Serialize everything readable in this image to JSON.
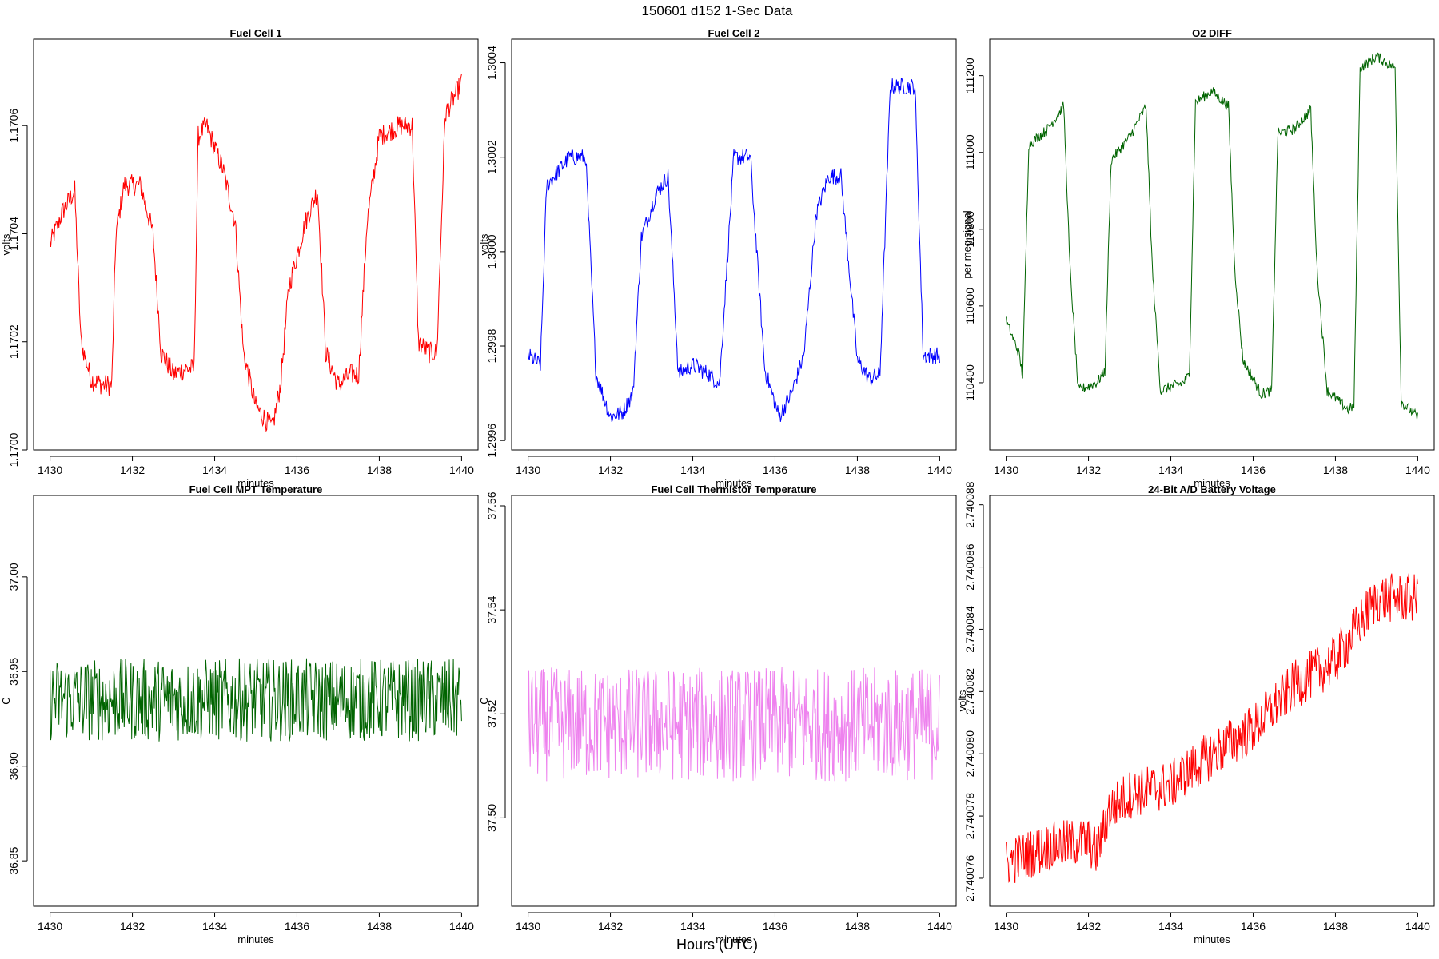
{
  "figure": {
    "title": "150601    d152    1-Sec Data",
    "footer_label": "Hours (UTC)"
  },
  "chart_data": [
    {
      "type": "line",
      "title": "Fuel Cell 1",
      "xlabel": "minutes",
      "ylabel": "volts",
      "color": "#ff0000",
      "xlim": [
        1429.6,
        1440.4
      ],
      "ylim": [
        1.17,
        1.17076
      ],
      "xticks": [
        "1430",
        "1432",
        "1434",
        "1436",
        "1438",
        "1440"
      ],
      "yticks": [
        "1.1700",
        "1.1702",
        "1.1704",
        "1.1706"
      ],
      "ytick_values": [
        1.17,
        1.1702,
        1.1704,
        1.1706
      ],
      "series": [
        {
          "x": [
            1430.0,
            1430.3,
            1430.6,
            1430.75,
            1431.0,
            1431.3,
            1431.5,
            1431.6,
            1431.8,
            1432.2,
            1432.5,
            1432.7,
            1433.0,
            1433.3,
            1433.5,
            1433.6,
            1433.8,
            1434.2,
            1434.5,
            1434.7,
            1435.0,
            1435.4,
            1435.6,
            1435.8,
            1436.2,
            1436.5,
            1436.7,
            1437.0,
            1437.3,
            1437.5,
            1437.7,
            1438.0,
            1438.5,
            1438.8,
            1438.95,
            1439.2,
            1439.4,
            1439.6,
            1440.0
          ],
          "y": [
            1.17038,
            1.17044,
            1.17048,
            1.1702,
            1.17013,
            1.17012,
            1.17012,
            1.1704,
            1.17049,
            1.17049,
            1.1704,
            1.17018,
            1.17014,
            1.17015,
            1.17015,
            1.17058,
            1.1706,
            1.17052,
            1.17042,
            1.17018,
            1.17008,
            1.17004,
            1.17012,
            1.1703,
            1.17042,
            1.17048,
            1.17018,
            1.17012,
            1.17014,
            1.17014,
            1.17042,
            1.17058,
            1.1706,
            1.1706,
            1.1702,
            1.17018,
            1.17018,
            1.17062,
            1.17068
          ],
          "noise": 2e-05
        }
      ]
    },
    {
      "type": "line",
      "title": "Fuel Cell 2",
      "xlabel": "minutes",
      "ylabel": "volts",
      "color": "#0000ff",
      "xlim": [
        1429.6,
        1440.4
      ],
      "ylim": [
        1.29958,
        1.30045
      ],
      "xticks": [
        "1430",
        "1432",
        "1434",
        "1436",
        "1438",
        "1440"
      ],
      "yticks": [
        "1.2996",
        "1.2998",
        "1.3000",
        "1.3002",
        "1.3004"
      ],
      "ytick_values": [
        1.2996,
        1.2998,
        1.3,
        1.3002,
        1.3004
      ],
      "series": [
        {
          "x": [
            1430.0,
            1430.3,
            1430.45,
            1431.0,
            1431.4,
            1431.65,
            1432.0,
            1432.3,
            1432.55,
            1432.75,
            1433.1,
            1433.4,
            1433.65,
            1434.0,
            1434.4,
            1434.65,
            1435.0,
            1435.4,
            1435.75,
            1436.1,
            1436.4,
            1436.7,
            1437.0,
            1437.3,
            1437.6,
            1438.0,
            1438.3,
            1438.55,
            1438.8,
            1439.1,
            1439.4,
            1439.6,
            1440.0
          ],
          "y": [
            1.29978,
            1.29976,
            1.30014,
            1.3002,
            1.3002,
            1.29974,
            1.29965,
            1.29966,
            1.2997,
            1.30003,
            1.30012,
            1.30016,
            1.29974,
            1.29976,
            1.29974,
            1.29972,
            1.3002,
            1.3002,
            1.29975,
            1.29965,
            1.2997,
            1.29978,
            1.30008,
            1.30016,
            1.30016,
            1.29977,
            1.29973,
            1.29974,
            1.30035,
            1.30035,
            1.30035,
            1.29978,
            1.29978
          ],
          "noise": 1.8e-05
        }
      ]
    },
    {
      "type": "line",
      "title": "O2 DIFF",
      "xlabel": "minutes",
      "ylabel": "per meg signal",
      "color": "#006400",
      "xlim": [
        1429.6,
        1440.4
      ],
      "ylim": [
        110225,
        111295
      ],
      "xticks": [
        "1430",
        "1432",
        "1434",
        "1436",
        "1438",
        "1440"
      ],
      "yticks": [
        "110400",
        "110600",
        "110800",
        "111000",
        "111200"
      ],
      "ytick_values": [
        110400,
        110600,
        110800,
        111000,
        111200
      ],
      "series": [
        {
          "x": [
            1430.0,
            1430.3,
            1430.4,
            1430.55,
            1431.0,
            1431.4,
            1431.55,
            1431.75,
            1432.2,
            1432.4,
            1432.55,
            1433.0,
            1433.4,
            1433.55,
            1433.75,
            1434.3,
            1434.45,
            1434.6,
            1435.0,
            1435.4,
            1435.55,
            1435.75,
            1436.2,
            1436.45,
            1436.6,
            1437.0,
            1437.4,
            1437.55,
            1437.8,
            1438.3,
            1438.45,
            1438.6,
            1439.0,
            1439.45,
            1439.6,
            1440.0
          ],
          "y": [
            110560,
            110480,
            110420,
            111020,
            111060,
            111120,
            110700,
            110380,
            110400,
            110430,
            110980,
            111040,
            111120,
            110700,
            110380,
            110400,
            110420,
            111130,
            111160,
            111120,
            110700,
            110460,
            110370,
            110380,
            111050,
            111060,
            111110,
            110700,
            110380,
            110330,
            110340,
            111220,
            111250,
            111220,
            110350,
            110310
          ],
          "noise": 14
        }
      ]
    },
    {
      "type": "line",
      "title": "Fuel Cell MPT Temperature",
      "xlabel": "minutes",
      "ylabel": "C",
      "color": "#006400",
      "xlim": [
        1429.6,
        1440.4
      ],
      "ylim": [
        36.826,
        37.043
      ],
      "xticks": [
        "1430",
        "1432",
        "1434",
        "1436",
        "1438",
        "1440"
      ],
      "yticks": [
        "36.85",
        "36.90",
        "36.95",
        "37.00"
      ],
      "ytick_values": [
        36.85,
        36.9,
        36.95,
        37.0
      ],
      "series": [
        {
          "x": [
            1430.0,
            1440.0
          ],
          "y": [
            36.935,
            36.935
          ],
          "noise": 0.022
        }
      ]
    },
    {
      "type": "line",
      "title": "Fuel Cell Thermistor Temperature",
      "xlabel": "minutes",
      "ylabel": "C",
      "color": "#ee82ee",
      "xlim": [
        1429.6,
        1440.4
      ],
      "ylim": [
        37.483,
        37.562
      ],
      "xticks": [
        "1430",
        "1432",
        "1434",
        "1436",
        "1438",
        "1440"
      ],
      "yticks": [
        "37.50",
        "37.52",
        "37.54",
        "37.56"
      ],
      "ytick_values": [
        37.5,
        37.52,
        37.54,
        37.56
      ],
      "series": [
        {
          "x": [
            1430.0,
            1440.0
          ],
          "y": [
            37.518,
            37.518
          ],
          "noise": 0.011
        }
      ]
    },
    {
      "type": "line",
      "title": "24-Bit A/D Battery Voltage",
      "xlabel": "minutes",
      "ylabel": "volts",
      "color": "#ff0000",
      "xlim": [
        1429.6,
        1440.4
      ],
      "ylim": [
        2.7400751,
        2.7400883
      ],
      "xticks": [
        "1430",
        "1432",
        "1434",
        "1436",
        "1438",
        "1440"
      ],
      "yticks": [
        "2.740076",
        "2.740078",
        "2.740080",
        "2.740082",
        "2.740084",
        "2.740086",
        "2.740088"
      ],
      "ytick_values": [
        2.740076,
        2.740078,
        2.74008,
        2.740082,
        2.740084,
        2.740086,
        2.740088
      ],
      "series": [
        {
          "x": [
            1430.0,
            1431.0,
            1432.0,
            1432.2,
            1432.5,
            1433.0,
            1434.0,
            1435.0,
            1436.0,
            1437.0,
            1438.0,
            1439.0,
            1440.0
          ],
          "y": [
            2.7400765,
            2.740077,
            2.7400772,
            2.7400768,
            2.7400782,
            2.7400787,
            2.740079,
            2.74008,
            2.7400808,
            2.7400822,
            2.740083,
            2.740085,
            2.740085
          ],
          "noise": 8e-07
        }
      ]
    }
  ]
}
